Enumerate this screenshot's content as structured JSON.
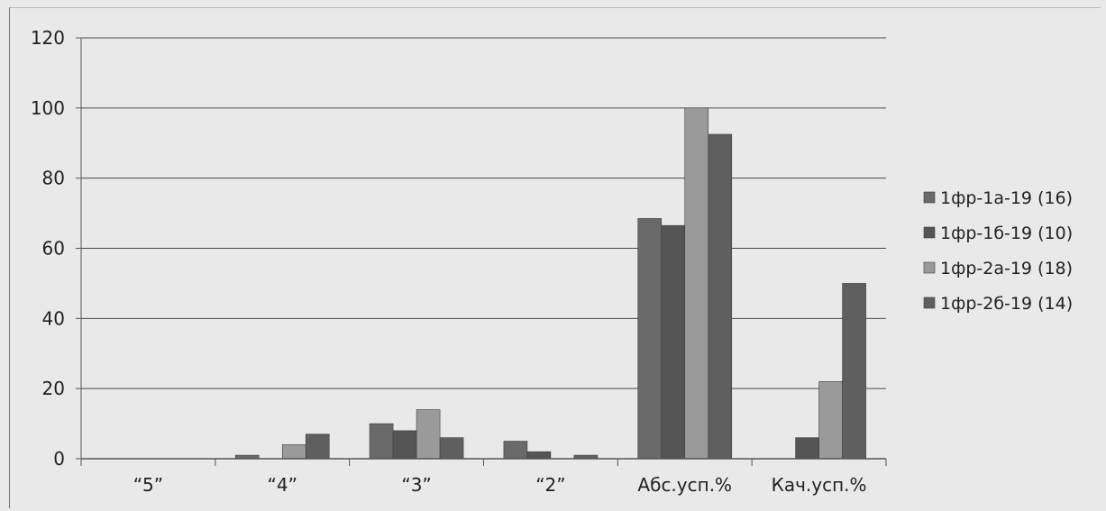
{
  "chart_data": {
    "type": "bar",
    "categories": [
      "“5”",
      "“4”",
      "“3”",
      "“2”",
      "Абс.усп.%",
      "Кач.усп.%"
    ],
    "series": [
      {
        "name": "1фр-1а-19 (16)",
        "color": "#6a6a6a",
        "values": [
          0,
          1,
          10,
          5,
          68.5,
          0
        ]
      },
      {
        "name": "1фр-1б-19 (10)",
        "color": "#555555",
        "values": [
          0,
          0,
          8,
          2,
          66.5,
          6
        ]
      },
      {
        "name": "1фр-2а-19 (18)",
        "color": "#9a9a9a",
        "values": [
          0,
          4,
          14,
          0,
          100,
          22
        ]
      },
      {
        "name": "1фр-2б-19 (14)",
        "color": "#5f5f5f",
        "values": [
          0,
          7,
          6,
          1,
          92.5,
          50
        ]
      }
    ],
    "y_ticks": [
      "0",
      "20",
      "40",
      "60",
      "80",
      "100",
      "120"
    ],
    "ylim": [
      0,
      120
    ],
    "grid": true,
    "legend_position": "right",
    "title": "",
    "xlabel": "",
    "ylabel": ""
  }
}
